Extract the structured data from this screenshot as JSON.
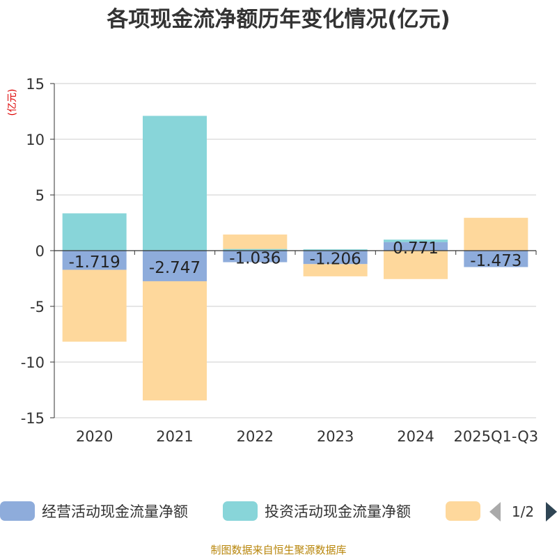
{
  "chart_data": {
    "type": "bar",
    "stacked": true,
    "title": "各项现金流净额历年变化情况(亿元)",
    "ylabel": "(亿元)",
    "xlabel": "",
    "categories": [
      "2020",
      "2021",
      "2022",
      "2023",
      "2024",
      "2025Q1-Q3"
    ],
    "ylim": [
      -15,
      15
    ],
    "yticks": [
      15,
      10,
      5,
      0,
      -5,
      -10,
      -15
    ],
    "grid": true,
    "series": [
      {
        "name": "经营活动现金流量净额",
        "color": "#8eacdb",
        "values": [
          -1.719,
          -2.747,
          -1.036,
          -1.206,
          0.771,
          -1.473
        ],
        "labels": [
          "-1.719",
          "-2.747",
          "-1.036",
          "-1.206",
          "0.771",
          "-1.473"
        ]
      },
      {
        "name": "投资活动现金流量净额",
        "color": "#88d5d9",
        "values": [
          3.35,
          12.1,
          0.15,
          0.12,
          0.22,
          0.0
        ]
      },
      {
        "name": "",
        "color": "#fed89c",
        "values": [
          -6.45,
          -10.7,
          1.3,
          -1.1,
          -2.55,
          2.95
        ]
      }
    ],
    "legend": {
      "position": "bottom",
      "page": "1/2"
    }
  },
  "source": "制图数据来自恒生聚源数据库"
}
